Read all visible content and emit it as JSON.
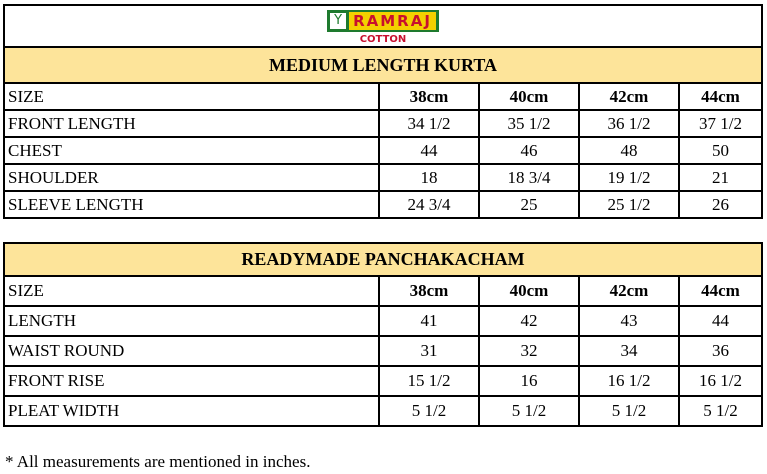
{
  "brand": {
    "name": "RAMRAJ",
    "sub": "COTTON",
    "colors": {
      "green": "#1e7a2e",
      "yellow": "#f4d100",
      "red": "#c8102e"
    }
  },
  "header_color": "#fde49a",
  "tables": [
    {
      "title": "MEDIUM LENGTH KURTA",
      "header": [
        "SIZE",
        "38cm",
        "40cm",
        "42cm",
        "44cm"
      ],
      "rows": [
        [
          "FRONT LENGTH",
          "34 1/2",
          "35 1/2",
          "36 1/2",
          "37 1/2"
        ],
        [
          "CHEST",
          "44",
          "46",
          "48",
          "50"
        ],
        [
          "SHOULDER",
          "18",
          "18 3/4",
          "19 1/2",
          "21"
        ],
        [
          "SLEEVE LENGTH",
          "24 3/4",
          "25",
          "25 1/2",
          "26"
        ]
      ]
    },
    {
      "title": "READYMADE PANCHAKACHAM",
      "header": [
        "SIZE",
        "38cm",
        "40cm",
        "42cm",
        "44cm"
      ],
      "rows": [
        [
          "LENGTH",
          "41",
          "42",
          "43",
          "44"
        ],
        [
          "WAIST ROUND",
          "31",
          "32",
          "34",
          "36"
        ],
        [
          "FRONT RISE",
          "15 1/2",
          "16",
          "16 1/2",
          "16 1/2"
        ],
        [
          "PLEAT WIDTH",
          "5 1/2",
          "5 1/2",
          "5 1/2",
          "5 1/2"
        ]
      ]
    }
  ],
  "footnote": "* All measurements are mentioned in inches."
}
